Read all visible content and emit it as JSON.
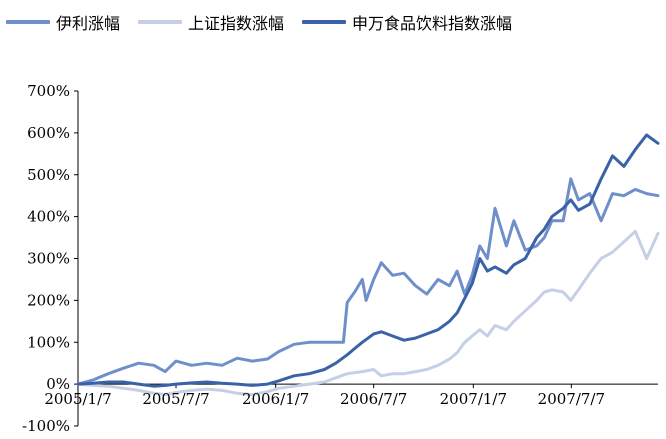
{
  "chart_data": {
    "type": "line",
    "title": "",
    "xlabel": "",
    "ylabel": "",
    "x_ticks": [
      "2005/1/7",
      "2005/7/7",
      "2006/1/7",
      "2006/7/7",
      "2007/1/7",
      "2007/7/7"
    ],
    "y_ticks": [
      "700%",
      "600%",
      "500%",
      "400%",
      "300%",
      "200%",
      "100%",
      "0%",
      "-100%"
    ],
    "ylim": [
      -100,
      700
    ],
    "xlim": [
      "2005-01-07",
      "2007-12-14"
    ],
    "grid": false,
    "legend_position": "top",
    "series": [
      {
        "name": "伊利涨幅",
        "color": "#6f8fcb",
        "points": [
          [
            "2005-01-07",
            0
          ],
          [
            "2005-02-04",
            10
          ],
          [
            "2005-03-04",
            25
          ],
          [
            "2005-04-01",
            38
          ],
          [
            "2005-04-29",
            50
          ],
          [
            "2005-05-27",
            45
          ],
          [
            "2005-06-17",
            30
          ],
          [
            "2005-07-07",
            55
          ],
          [
            "2005-08-05",
            45
          ],
          [
            "2005-09-02",
            50
          ],
          [
            "2005-09-30",
            45
          ],
          [
            "2005-10-28",
            62
          ],
          [
            "2005-11-25",
            55
          ],
          [
            "2005-12-23",
            60
          ],
          [
            "2006-01-13",
            78
          ],
          [
            "2006-02-10",
            95
          ],
          [
            "2006-03-10",
            100
          ],
          [
            "2006-04-07",
            100
          ],
          [
            "2006-04-28",
            100
          ],
          [
            "2006-05-12",
            100
          ],
          [
            "2006-05-19",
            195
          ],
          [
            "2006-06-02",
            220
          ],
          [
            "2006-06-16",
            250
          ],
          [
            "2006-06-23",
            200
          ],
          [
            "2006-07-07",
            250
          ],
          [
            "2006-07-21",
            290
          ],
          [
            "2006-08-11",
            260
          ],
          [
            "2006-09-01",
            265
          ],
          [
            "2006-09-22",
            235
          ],
          [
            "2006-10-13",
            215
          ],
          [
            "2006-11-03",
            250
          ],
          [
            "2006-11-24",
            235
          ],
          [
            "2006-12-08",
            270
          ],
          [
            "2006-12-22",
            215
          ],
          [
            "2007-01-05",
            260
          ],
          [
            "2007-01-19",
            330
          ],
          [
            "2007-02-02",
            300
          ],
          [
            "2007-02-16",
            420
          ],
          [
            "2007-03-09",
            330
          ],
          [
            "2007-03-23",
            390
          ],
          [
            "2007-04-13",
            320
          ],
          [
            "2007-05-04",
            330
          ],
          [
            "2007-05-18",
            350
          ],
          [
            "2007-06-01",
            390
          ],
          [
            "2007-06-22",
            390
          ],
          [
            "2007-07-06",
            490
          ],
          [
            "2007-07-20",
            440
          ],
          [
            "2007-08-10",
            455
          ],
          [
            "2007-08-31",
            390
          ],
          [
            "2007-09-21",
            455
          ],
          [
            "2007-10-12",
            450
          ],
          [
            "2007-11-02",
            465
          ],
          [
            "2007-11-23",
            455
          ],
          [
            "2007-12-14",
            450
          ]
        ]
      },
      {
        "name": "上证指数涨幅",
        "color": "#c5cfe6",
        "points": [
          [
            "2005-01-07",
            0
          ],
          [
            "2005-02-04",
            -3
          ],
          [
            "2005-03-04",
            -5
          ],
          [
            "2005-04-01",
            -10
          ],
          [
            "2005-04-29",
            -15
          ],
          [
            "2005-05-27",
            -22
          ],
          [
            "2005-06-17",
            -25
          ],
          [
            "2005-07-07",
            -20
          ],
          [
            "2005-08-05",
            -15
          ],
          [
            "2005-09-02",
            -12
          ],
          [
            "2005-09-30",
            -15
          ],
          [
            "2005-10-28",
            -22
          ],
          [
            "2005-11-25",
            -25
          ],
          [
            "2005-12-23",
            -18
          ],
          [
            "2006-01-13",
            -10
          ],
          [
            "2006-02-10",
            -5
          ],
          [
            "2006-03-10",
            0
          ],
          [
            "2006-04-07",
            5
          ],
          [
            "2006-04-28",
            15
          ],
          [
            "2006-05-19",
            25
          ],
          [
            "2006-06-16",
            30
          ],
          [
            "2006-07-07",
            35
          ],
          [
            "2006-07-21",
            20
          ],
          [
            "2006-08-11",
            25
          ],
          [
            "2006-09-01",
            25
          ],
          [
            "2006-09-22",
            30
          ],
          [
            "2006-10-13",
            35
          ],
          [
            "2006-11-03",
            45
          ],
          [
            "2006-11-24",
            60
          ],
          [
            "2006-12-08",
            75
          ],
          [
            "2006-12-22",
            100
          ],
          [
            "2007-01-05",
            115
          ],
          [
            "2007-01-19",
            130
          ],
          [
            "2007-02-02",
            115
          ],
          [
            "2007-02-16",
            140
          ],
          [
            "2007-03-09",
            130
          ],
          [
            "2007-03-23",
            150
          ],
          [
            "2007-04-13",
            175
          ],
          [
            "2007-05-04",
            200
          ],
          [
            "2007-05-18",
            220
          ],
          [
            "2007-06-01",
            225
          ],
          [
            "2007-06-22",
            220
          ],
          [
            "2007-07-06",
            200
          ],
          [
            "2007-07-20",
            225
          ],
          [
            "2007-08-10",
            265
          ],
          [
            "2007-08-31",
            300
          ],
          [
            "2007-09-21",
            315
          ],
          [
            "2007-10-12",
            340
          ],
          [
            "2007-11-02",
            365
          ],
          [
            "2007-11-23",
            300
          ],
          [
            "2007-12-14",
            360
          ]
        ]
      },
      {
        "name": "申万食品饮料指数涨幅",
        "color": "#3a62a7",
        "points": [
          [
            "2005-01-07",
            0
          ],
          [
            "2005-02-04",
            2
          ],
          [
            "2005-03-04",
            5
          ],
          [
            "2005-04-01",
            5
          ],
          [
            "2005-04-29",
            0
          ],
          [
            "2005-05-27",
            -5
          ],
          [
            "2005-06-17",
            -3
          ],
          [
            "2005-07-07",
            0
          ],
          [
            "2005-08-05",
            3
          ],
          [
            "2005-09-02",
            5
          ],
          [
            "2005-09-30",
            2
          ],
          [
            "2005-10-28",
            0
          ],
          [
            "2005-11-25",
            -3
          ],
          [
            "2005-12-23",
            0
          ],
          [
            "2006-01-13",
            8
          ],
          [
            "2006-02-10",
            20
          ],
          [
            "2006-03-10",
            25
          ],
          [
            "2006-04-07",
            35
          ],
          [
            "2006-04-28",
            50
          ],
          [
            "2006-05-19",
            70
          ],
          [
            "2006-06-02",
            85
          ],
          [
            "2006-06-16",
            100
          ],
          [
            "2006-07-07",
            120
          ],
          [
            "2006-07-21",
            125
          ],
          [
            "2006-08-11",
            115
          ],
          [
            "2006-09-01",
            105
          ],
          [
            "2006-09-22",
            110
          ],
          [
            "2006-10-13",
            120
          ],
          [
            "2006-11-03",
            130
          ],
          [
            "2006-11-24",
            150
          ],
          [
            "2006-12-08",
            170
          ],
          [
            "2006-12-22",
            205
          ],
          [
            "2007-01-05",
            240
          ],
          [
            "2007-01-19",
            300
          ],
          [
            "2007-02-02",
            270
          ],
          [
            "2007-02-16",
            280
          ],
          [
            "2007-03-09",
            265
          ],
          [
            "2007-03-23",
            285
          ],
          [
            "2007-04-13",
            300
          ],
          [
            "2007-05-04",
            350
          ],
          [
            "2007-05-18",
            370
          ],
          [
            "2007-06-01",
            400
          ],
          [
            "2007-06-22",
            420
          ],
          [
            "2007-07-06",
            440
          ],
          [
            "2007-07-20",
            415
          ],
          [
            "2007-08-10",
            430
          ],
          [
            "2007-08-31",
            490
          ],
          [
            "2007-09-21",
            545
          ],
          [
            "2007-10-12",
            520
          ],
          [
            "2007-11-02",
            560
          ],
          [
            "2007-11-23",
            595
          ],
          [
            "2007-12-14",
            575
          ]
        ]
      }
    ]
  }
}
